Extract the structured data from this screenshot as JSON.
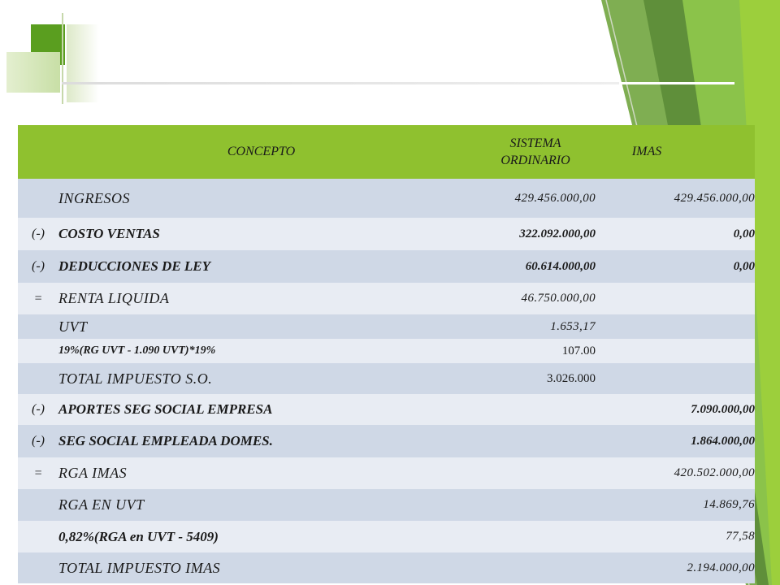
{
  "colors": {
    "header_green": "#8fc12f",
    "accent_dark_green": "#5a9e1f",
    "row_blue": "#cfd8e6",
    "row_light": "#e8ecf3"
  },
  "table": {
    "headers": {
      "concepto": "CONCEPTO",
      "sistema_ordinario": "SISTEMA ORDINARIO",
      "imas": "IMAS"
    },
    "rows": [
      {
        "sign": "",
        "concept": "INGRESOS",
        "so": "429.456.000,00",
        "imas": "429.456.000,00"
      },
      {
        "sign": "(-)",
        "concept": "COSTO VENTAS",
        "so": "322.092.000,00",
        "imas": "0,00"
      },
      {
        "sign": "(-)",
        "concept": "DEDUCCIONES DE LEY",
        "so": "60.614.000,00",
        "imas": "0,00"
      },
      {
        "sign": "=",
        "concept": "RENTA LIQUIDA",
        "so": "46.750.000,00",
        "imas": ""
      },
      {
        "sign": "",
        "concept": "UVT",
        "so": "1.653,17",
        "imas": ""
      },
      {
        "sign": "",
        "concept": "19%(RG UVT - 1.090 UVT)*19%",
        "so": "107.00",
        "imas": ""
      },
      {
        "sign": "",
        "concept": "TOTAL IMPUESTO S.O.",
        "so": "3.026.000",
        "imas": ""
      },
      {
        "sign": "(-)",
        "concept": "APORTES SEG SOCIAL EMPRESA",
        "so": "",
        "imas": "7.090.000,00"
      },
      {
        "sign": "(-)",
        "concept": "SEG SOCIAL EMPLEADA DOMES.",
        "so": "",
        "imas": "1.864.000,00"
      },
      {
        "sign": "=",
        "concept": "RGA IMAS",
        "so": "",
        "imas": "420.502.000,00"
      },
      {
        "sign": "",
        "concept": "RGA EN UVT",
        "so": "",
        "imas": "14.869,76"
      },
      {
        "sign": "",
        "concept": "0,82%(RGA en UVT - 5409)",
        "so": "",
        "imas": "77,58"
      },
      {
        "sign": "",
        "concept": "TOTAL IMPUESTO IMAS",
        "so": "",
        "imas": "2.194.000,00"
      }
    ]
  }
}
